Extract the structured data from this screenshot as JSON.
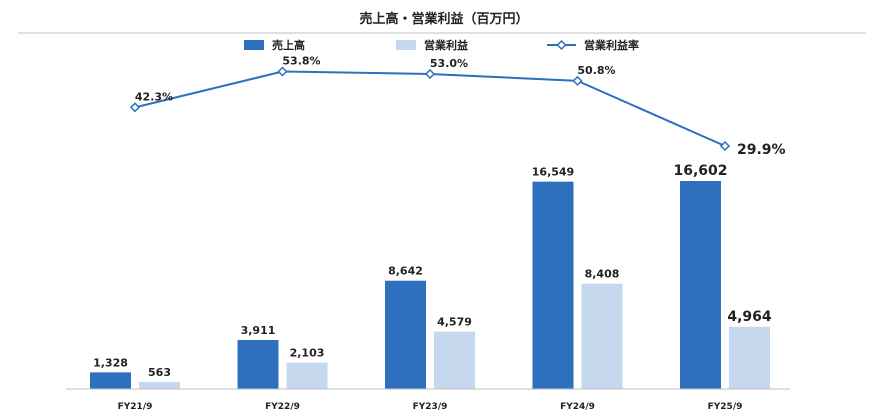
{
  "chart_data": {
    "type": "bar",
    "title": "売上高・営業利益（百万円）",
    "categories": [
      "FY21/9",
      "FY22/9",
      "FY23/9",
      "FY24/9",
      "FY25/9"
    ],
    "series": [
      {
        "name": "売上高",
        "type": "bar",
        "color": "#2e6fbe",
        "values": [
          1328,
          3911,
          8642,
          16549,
          16602
        ],
        "labels": [
          "1,328",
          "3,911",
          "8,642",
          "16,549",
          "16,602"
        ]
      },
      {
        "name": "営業利益",
        "type": "bar",
        "color": "#c5d8ee",
        "values": [
          563,
          2103,
          4579,
          8408,
          4964
        ],
        "labels": [
          "563",
          "2,103",
          "4,579",
          "8,408",
          "4,964"
        ]
      },
      {
        "name": "営業利益率",
        "type": "line",
        "color": "#2e6fbe",
        "marker": "diamond-open",
        "values": [
          42.3,
          53.8,
          53.0,
          50.8,
          29.9
        ],
        "labels": [
          "42.3%",
          "53.8%",
          "53.0%",
          "50.8%",
          "29.9%"
        ]
      }
    ],
    "legend_position": "top-center",
    "grid": false
  }
}
